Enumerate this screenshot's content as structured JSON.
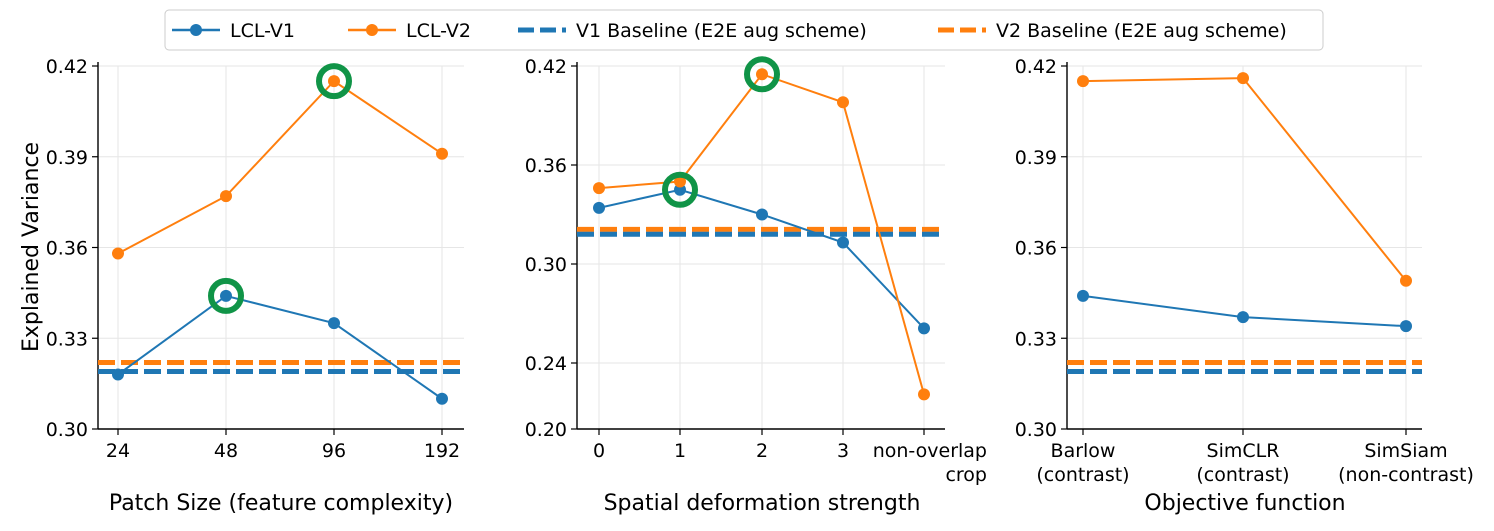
{
  "colors": {
    "v1": "#1f77b4",
    "v2": "#ff7f0e",
    "highlight": "#109447",
    "grid": "#e6e6e6"
  },
  "legend": [
    {
      "key": "v1",
      "label": "LCL-V1",
      "style": "line-marker"
    },
    {
      "key": "v2",
      "label": "LCL-V2",
      "style": "line-marker"
    },
    {
      "key": "v1",
      "label": "V1 Baseline (E2E aug scheme)",
      "style": "dashed"
    },
    {
      "key": "v2",
      "label": "V2 Baseline (E2E aug scheme)",
      "style": "dashed"
    }
  ],
  "shared_ylabel": "Explained Variance",
  "chart_data": [
    {
      "type": "line",
      "xlabel": "Patch Size (feature complexity)",
      "ylabel": "Explained Variance",
      "categories": [
        [
          "24"
        ],
        [
          "48"
        ],
        [
          "96"
        ],
        [
          "192"
        ]
      ],
      "ylim": [
        0.3,
        0.42
      ],
      "yticks": [
        0.3,
        0.33,
        0.36,
        0.39,
        0.42
      ],
      "ytick_labels": [
        "0.30",
        "0.33",
        "0.36",
        "0.39",
        "0.42"
      ],
      "series": [
        {
          "name": "LCL-V1",
          "key": "v1",
          "values": [
            0.318,
            0.344,
            0.335,
            0.31
          ]
        },
        {
          "name": "LCL-V2",
          "key": "v2",
          "values": [
            0.358,
            0.377,
            0.415,
            0.391
          ]
        }
      ],
      "baselines": [
        {
          "name": "V1 Baseline (E2E aug scheme)",
          "key": "v1",
          "value": 0.319
        },
        {
          "name": "V2 Baseline (E2E aug scheme)",
          "key": "v2",
          "value": 0.322
        }
      ],
      "highlights": [
        {
          "series": "LCL-V2",
          "index": 2
        },
        {
          "series": "LCL-V1",
          "index": 1
        }
      ]
    },
    {
      "type": "line",
      "xlabel": "Spatial deformation strength",
      "ylabel": "",
      "categories": [
        [
          "0"
        ],
        [
          "1"
        ],
        [
          "2"
        ],
        [
          "3"
        ],
        [
          "non-overlap",
          "crop"
        ]
      ],
      "ylim": [
        0.2,
        0.42
      ],
      "yticks": [
        0.2,
        0.24,
        0.3,
        0.36,
        0.42
      ],
      "ytick_labels": [
        "0.20",
        "0.24",
        "0.30",
        "0.36",
        "0.42"
      ],
      "series": [
        {
          "name": "LCL-V1",
          "key": "v1",
          "values": [
            0.334,
            0.345,
            0.33,
            0.313,
            0.261
          ]
        },
        {
          "name": "LCL-V2",
          "key": "v2",
          "values": [
            0.346,
            0.35,
            0.415,
            0.398,
            0.221
          ]
        }
      ],
      "baselines": [
        {
          "name": "V1 Baseline (E2E aug scheme)",
          "key": "v1",
          "value": 0.318
        },
        {
          "name": "V2 Baseline (E2E aug scheme)",
          "key": "v2",
          "value": 0.321
        }
      ],
      "highlights": [
        {
          "series": "LCL-V2",
          "index": 2
        },
        {
          "series": "LCL-V1",
          "index": 1
        }
      ]
    },
    {
      "type": "line",
      "xlabel": "Objective function",
      "ylabel": "",
      "categories": [
        [
          "Barlow",
          "(contrast)"
        ],
        [
          "SimCLR",
          "(contrast)"
        ],
        [
          "SimSiam",
          "(non-contrast)"
        ]
      ],
      "ylim": [
        0.3,
        0.42
      ],
      "yticks": [
        0.3,
        0.33,
        0.36,
        0.39,
        0.42
      ],
      "ytick_labels": [
        "0.30",
        "0.33",
        "0.36",
        "0.39",
        "0.42"
      ],
      "series": [
        {
          "name": "LCL-V1",
          "key": "v1",
          "values": [
            0.344,
            0.337,
            0.334
          ]
        },
        {
          "name": "LCL-V2",
          "key": "v2",
          "values": [
            0.415,
            0.416,
            0.349
          ]
        }
      ],
      "baselines": [
        {
          "name": "V1 Baseline (E2E aug scheme)",
          "key": "v1",
          "value": 0.319
        },
        {
          "name": "V2 Baseline (E2E aug scheme)",
          "key": "v2",
          "value": 0.322
        }
      ],
      "highlights": []
    }
  ]
}
